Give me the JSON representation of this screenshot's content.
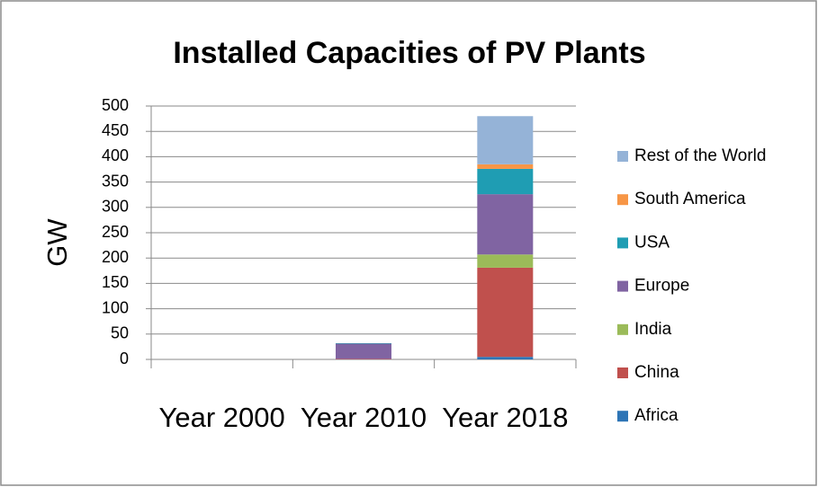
{
  "chart_data": {
    "type": "stacked_bar",
    "title": "Installed Capacities of PV Plants",
    "y_label": "GW",
    "categories": [
      "Year 2000",
      "Year 2010",
      "Year 2018"
    ],
    "series": [
      {
        "name": "Africa",
        "color": "#2e75b6",
        "values": [
          0,
          0,
          5
        ]
      },
      {
        "name": "China",
        "color": "#c0504d",
        "values": [
          0,
          1,
          176
        ]
      },
      {
        "name": "India",
        "color": "#9bbb59",
        "values": [
          0,
          0,
          26
        ]
      },
      {
        "name": "Europe",
        "color": "#8064a2",
        "values": [
          0,
          30,
          119
        ]
      },
      {
        "name": "USA",
        "color": "#1f9db3",
        "values": [
          0,
          1,
          50
        ]
      },
      {
        "name": "South America",
        "color": "#f79646",
        "values": [
          0,
          0,
          9
        ]
      },
      {
        "name": "Rest of the World",
        "color": "#95b3d7",
        "values": [
          0,
          0,
          95
        ]
      }
    ],
    "ylim": [
      0,
      500
    ],
    "yticks": [
      0,
      50,
      100,
      150,
      200,
      250,
      300,
      350,
      400,
      450,
      500
    ],
    "grid": true,
    "legend": "right"
  }
}
